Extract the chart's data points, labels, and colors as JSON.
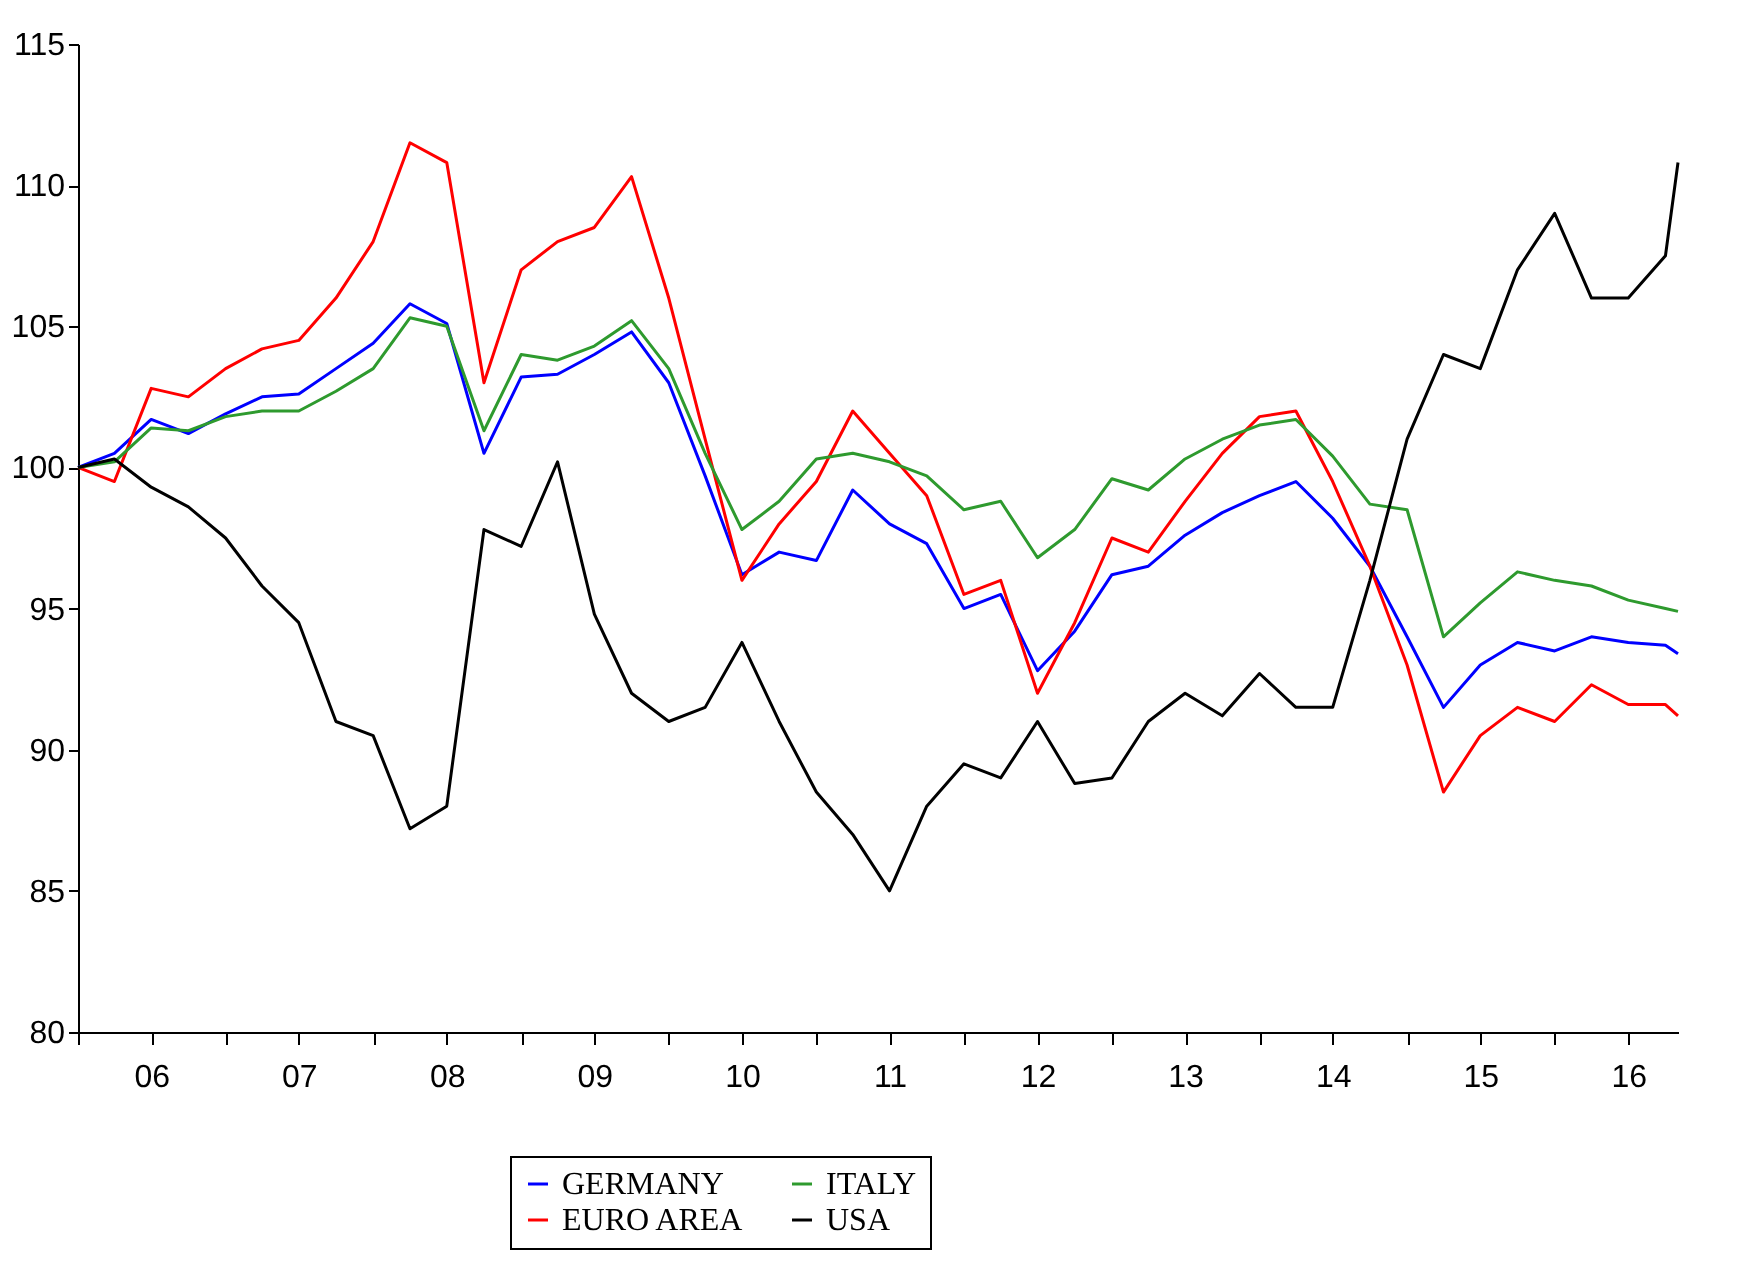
{
  "chart_data": {
    "type": "line",
    "x": [
      "2006-01",
      "2006-04",
      "2006-07",
      "2006-10",
      "2007-01",
      "2007-04",
      "2007-07",
      "2007-10",
      "2008-01",
      "2008-04",
      "2008-07",
      "2008-10",
      "2009-01",
      "2009-04",
      "2009-07",
      "2009-10",
      "2010-01",
      "2010-04",
      "2010-07",
      "2010-10",
      "2011-01",
      "2011-04",
      "2011-07",
      "2011-10",
      "2012-01",
      "2012-04",
      "2012-07",
      "2012-10",
      "2013-01",
      "2013-04",
      "2013-07",
      "2013-10",
      "2014-01",
      "2014-04",
      "2014-07",
      "2014-10",
      "2015-01",
      "2015-04",
      "2015-07",
      "2015-10",
      "2016-01",
      "2016-04",
      "2016-07",
      "2016-10",
      "2016-11"
    ],
    "series": [
      {
        "name": "GERMANY",
        "color": "#0000ff",
        "values": [
          100,
          100.5,
          101.7,
          101.2,
          101.9,
          102.5,
          102.6,
          103.5,
          104.4,
          105.8,
          105.1,
          100.5,
          103.2,
          103.3,
          104.0,
          104.8,
          103.0,
          99.7,
          96.2,
          97.0,
          96.7,
          99.2,
          98.0,
          97.3,
          95.0,
          95.5,
          92.8,
          94.2,
          96.2,
          96.5,
          97.6,
          98.4,
          99.0,
          99.5,
          98.2,
          96.5,
          94.0,
          91.5,
          93.0,
          93.8,
          93.5,
          94.0,
          93.8,
          93.7,
          93.4
        ]
      },
      {
        "name": "EURO AREA",
        "color": "#ff0000",
        "values": [
          100,
          99.5,
          102.8,
          102.5,
          103.5,
          104.2,
          104.5,
          106.0,
          108.0,
          111.5,
          110.8,
          103.0,
          107.0,
          108.0,
          108.5,
          110.3,
          106.0,
          101.0,
          96.0,
          98.0,
          99.5,
          102.0,
          100.5,
          99.0,
          95.5,
          96.0,
          92.0,
          94.5,
          97.5,
          97.0,
          98.8,
          100.5,
          101.8,
          102.0,
          99.5,
          96.5,
          93.0,
          88.5,
          90.5,
          91.5,
          91.0,
          92.3,
          91.6,
          91.6,
          91.2
        ]
      },
      {
        "name": "ITALY",
        "color": "#2e9a2e",
        "values": [
          100,
          100.2,
          101.4,
          101.3,
          101.8,
          102.0,
          102.0,
          102.7,
          103.5,
          105.3,
          105.0,
          101.3,
          104.0,
          103.8,
          104.3,
          105.2,
          103.5,
          100.5,
          97.8,
          98.8,
          100.3,
          100.5,
          100.2,
          99.7,
          98.5,
          98.8,
          96.8,
          97.8,
          99.6,
          99.2,
          100.3,
          101.0,
          101.5,
          101.7,
          100.4,
          98.7,
          98.5,
          94.0,
          95.2,
          96.3,
          96.0,
          95.8,
          95.3,
          95.0,
          94.9
        ]
      },
      {
        "name": "USA",
        "color": "#000000",
        "values": [
          100,
          100.3,
          99.3,
          98.6,
          97.5,
          95.8,
          94.5,
          91.0,
          90.5,
          87.2,
          88.0,
          97.8,
          97.2,
          100.2,
          94.8,
          92.0,
          91.0,
          91.5,
          93.8,
          91.0,
          88.5,
          87.0,
          85.0,
          88.0,
          89.5,
          89.0,
          91.0,
          88.8,
          89.0,
          91.0,
          92.0,
          91.2,
          92.7,
          91.5,
          91.5,
          96.0,
          101.0,
          104.0,
          103.5,
          107.0,
          109.0,
          106.0,
          106.0,
          107.5,
          110.8
        ]
      }
    ],
    "xlim": [
      "2006-01",
      "2016-11"
    ],
    "xticks": [
      {
        "value": "2006-01",
        "label": null
      },
      {
        "value": "2006-07",
        "label": "06"
      },
      {
        "value": "2007-01",
        "label": null
      },
      {
        "value": "2007-07",
        "label": "07"
      },
      {
        "value": "2008-01",
        "label": null
      },
      {
        "value": "2008-07",
        "label": "08"
      },
      {
        "value": "2009-01",
        "label": null
      },
      {
        "value": "2009-07",
        "label": "09"
      },
      {
        "value": "2010-01",
        "label": null
      },
      {
        "value": "2010-07",
        "label": "10"
      },
      {
        "value": "2011-01",
        "label": null
      },
      {
        "value": "2011-07",
        "label": "11"
      },
      {
        "value": "2012-01",
        "label": null
      },
      {
        "value": "2012-07",
        "label": "12"
      },
      {
        "value": "2013-01",
        "label": null
      },
      {
        "value": "2013-07",
        "label": "13"
      },
      {
        "value": "2014-01",
        "label": null
      },
      {
        "value": "2014-07",
        "label": "14"
      },
      {
        "value": "2015-01",
        "label": null
      },
      {
        "value": "2015-07",
        "label": "15"
      },
      {
        "value": "2016-01",
        "label": null
      },
      {
        "value": "2016-07",
        "label": "16"
      }
    ],
    "ylim": [
      80,
      115
    ],
    "yticks": [
      80,
      85,
      90,
      95,
      100,
      105,
      110,
      115
    ],
    "grid": false,
    "legend": "bottom",
    "line_style": "solid"
  }
}
